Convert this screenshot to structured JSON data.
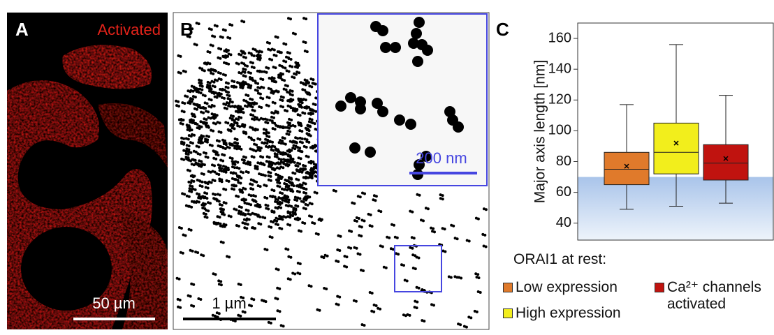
{
  "panel_a": {
    "label": "A",
    "condition": "Activated",
    "scale_bar": "50 µm"
  },
  "panel_b": {
    "label": "B",
    "inset_scale_bar": "200 nm",
    "scale_bar": "1 µm"
  },
  "panel_c": {
    "label": "C",
    "legend_title": "ORAI1 at rest:"
  },
  "chart_data": {
    "type": "box",
    "ylabel": "Major axis length [nm]",
    "ylim": [
      29,
      170
    ],
    "yticks": [
      40,
      60,
      80,
      100,
      120,
      140,
      160
    ],
    "shade_max": 70,
    "series": [
      {
        "name": "Low expression",
        "color": "#e07a2b",
        "whisker_low": 49,
        "q1": 65,
        "median": 75,
        "q3": 86,
        "whisker_high": 117,
        "mean": 77
      },
      {
        "name": "High expression",
        "color": "#f2ee1c",
        "whisker_low": 51,
        "q1": 72,
        "median": 86,
        "q3": 105,
        "whisker_high": 156,
        "mean": 92
      },
      {
        "name": "Ca²⁺ channels activated",
        "color": "#c0130f",
        "whisker_low": 53,
        "q1": 68,
        "median": 79,
        "q3": 91,
        "whisker_high": 123,
        "mean": 82
      }
    ]
  }
}
